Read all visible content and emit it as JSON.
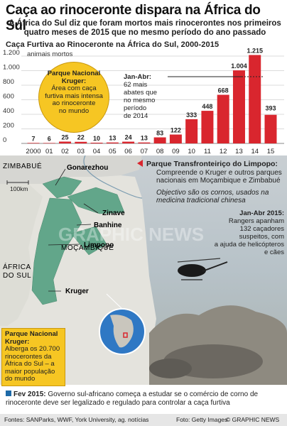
{
  "header": {
    "title": "Caça ao rinoceronte dispara na África do Sul",
    "subtitle_line1": "A África do Sul diz que foram mortos mais rinocerontes nos primeiros",
    "subtitle_line2": "quatro meses de 2015 que no mesmo período do ano passado"
  },
  "chart_data": {
    "type": "bar",
    "title": "Caça Furtiva ao Rinoceronte na África do Sul, 2000-2015",
    "ylabel": "animais mortos",
    "ylim": [
      0,
      1200
    ],
    "yticks": [
      0,
      200,
      400,
      600,
      800,
      1000,
      1200
    ],
    "ytick_labels": [
      "0",
      "200",
      "400",
      "600",
      "800",
      "1.000",
      "1.200"
    ],
    "categories": [
      "2000",
      "01",
      "02",
      "03",
      "04",
      "05",
      "06",
      "07",
      "08",
      "09",
      "10",
      "11",
      "12",
      "13",
      "14",
      "15"
    ],
    "values": [
      7,
      6,
      25,
      22,
      10,
      13,
      24,
      13,
      83,
      122,
      333,
      448,
      668,
      1004,
      1215,
      393
    ],
    "value_labels": [
      "7",
      "6",
      "25",
      "22",
      "10",
      "13",
      "24",
      "13",
      "83",
      "122",
      "333",
      "448",
      "668",
      "1.004",
      "1.215",
      "393"
    ],
    "bar_color": "#d9262e"
  },
  "chart_notes": {
    "kruger_title": "Parque Nacional Kruger:",
    "kruger_lines": [
      "Área com caça",
      "furtiva mais intensa",
      "ao rinoceronte",
      "no mundo"
    ],
    "jan_abr_title": "Jan-Abr:",
    "jan_abr_lines": [
      "62 mais",
      "abates que",
      "no mesmo",
      "período",
      "de 2014"
    ]
  },
  "map": {
    "label_zimbabwe": "ZIMBABUÉ",
    "label_mozambique": "MOÇAMBIQUE",
    "label_sa_1": "ÁFRICA",
    "label_sa_2": "DO SUL",
    "scale": "100km",
    "parks": [
      "Gonarezhou",
      "Zinave",
      "Banhine",
      "Limpopo",
      "Kruger"
    ],
    "watermark": "GRAPHIC NEWS",
    "limpopo_title": "Parque Transfronteiriço do Limpopo:",
    "limpopo_text": "Compreende o Kruger e outros parques nacionais em Moçambique e Zimbabué",
    "limpopo_italic": "Objectivo são os cornos, usados na medicina tradicional chinesa",
    "rangers_title": "Jan-Abr 2015:",
    "rangers_lines": [
      "Rangers apanham",
      "132 caçadores",
      "suspeitos, com",
      "a ajuda de helicópteros",
      "e cães"
    ],
    "kruger_box_title": "Parque Nacional Kruger:",
    "kruger_box_text": "Alberga os 20.700 rinocerontes da África do Sul – a maior população do mundo"
  },
  "footer": {
    "note_title": "Fev 2015:",
    "note_text": "Governo sul-africano começa a estudar se o comércio de corno de rinoceronte deve ser legalizado e regulado para controlar a caça furtiva",
    "sources": "Fontes: SANParks, WWF, York University, ag. notícias",
    "photo": "Foto: Getty Images",
    "copyright": "© GRAPHIC NEWS"
  }
}
